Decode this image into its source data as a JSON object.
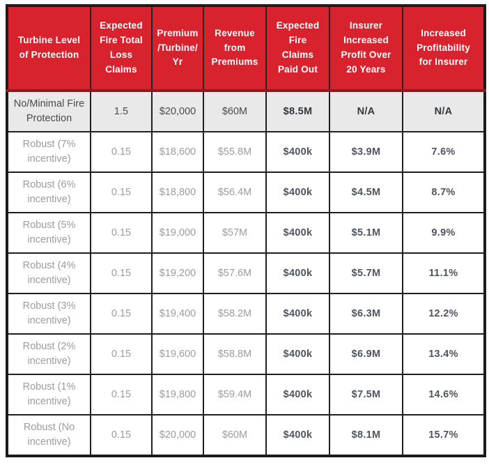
{
  "page": {
    "background": "#ffffff"
  },
  "table": {
    "accent_red": "#d8232e",
    "header_bottom_border_red": "#8a1b21",
    "outer_border_black": "#1b1b1b",
    "highlight_row_bg": "#e9e9e9",
    "light_text_color": "#9c9c9c",
    "strong_text_color": "#4e5560",
    "columns": [
      {
        "id": "turbine-level",
        "label": "Turbine Level\nof Protection"
      },
      {
        "id": "expected-fire-total-loss-claims",
        "label": "Expected\nFire Total\nLoss\nClaims"
      },
      {
        "id": "premium-per-turbine-yr",
        "label": "Premium\n/Turbine/\nYr"
      },
      {
        "id": "revenue-from-premiums",
        "label": "Revenue\nfrom\nPremiums"
      },
      {
        "id": "expected-fire-claims-paid-out",
        "label": "Expected\nFire\nClaims\nPaid Out"
      },
      {
        "id": "insurer-increased-profit-20-years",
        "label": "Insurer\nIncreased\nProfit Over\n20 Years"
      },
      {
        "id": "increased-profitability-for-insurer",
        "label": "Increased\nProfitability\nfor Insurer"
      }
    ],
    "rows": [
      {
        "label": "No/Minimal Fire\nProtection",
        "highlight": true,
        "values": [
          "1.5",
          "$20,000",
          "$60M",
          "$8.5M",
          "N/A",
          "N/A"
        ]
      },
      {
        "label": "Robust (7%\nincentive)",
        "highlight": false,
        "values": [
          "0.15",
          "$18,600",
          "$55.8M",
          "$400k",
          "$3.9M",
          "7.6%"
        ]
      },
      {
        "label": "Robust (6%\nincentive)",
        "highlight": false,
        "values": [
          "0.15",
          "$18,800",
          "$56.4M",
          "$400k",
          "$4.5M",
          "8.7%"
        ]
      },
      {
        "label": "Robust (5%\nincentive)",
        "highlight": false,
        "values": [
          "0.15",
          "$19,000",
          "$57M",
          "$400k",
          "$5.1M",
          "9.9%"
        ]
      },
      {
        "label": "Robust (4%\nincentive)",
        "highlight": false,
        "values": [
          "0.15",
          "$19,200",
          "$57.6M",
          "$400k",
          "$5.7M",
          "11.1%"
        ]
      },
      {
        "label": "Robust (3%\nincentive)",
        "highlight": false,
        "values": [
          "0.15",
          "$19,400",
          "$58.2M",
          "$400k",
          "$6.3M",
          "12.2%"
        ]
      },
      {
        "label": "Robust (2%\nincentive)",
        "highlight": false,
        "values": [
          "0.15",
          "$19,600",
          "$58.8M",
          "$400k",
          "$6.9M",
          "13.4%"
        ]
      },
      {
        "label": "Robust (1%\nincentive)",
        "highlight": false,
        "values": [
          "0.15",
          "$19,800",
          "$59.4M",
          "$400k",
          "$7.5M",
          "14.6%"
        ]
      },
      {
        "label": "Robust (No\nincentive)",
        "highlight": false,
        "values": [
          "0.15",
          "$20,000",
          "$60M",
          "$400k",
          "$8.1M",
          "15.7%"
        ]
      }
    ]
  },
  "chart_data": {
    "type": "table",
    "title": "",
    "columns": [
      "Turbine Level of Protection",
      "Expected Fire Total Loss Claims",
      "Premium /Turbine/ Yr",
      "Revenue from Premiums",
      "Expected Fire Claims Paid Out",
      "Insurer Increased Profit Over 20 Years",
      "Increased Profitability for Insurer"
    ],
    "rows": [
      [
        "No/Minimal Fire Protection",
        "1.5",
        "$20,000",
        "$60M",
        "$8.5M",
        "N/A",
        "N/A"
      ],
      [
        "Robust (7% incentive)",
        "0.15",
        "$18,600",
        "$55.8M",
        "$400k",
        "$3.9M",
        "7.6%"
      ],
      [
        "Robust (6% incentive)",
        "0.15",
        "$18,800",
        "$56.4M",
        "$400k",
        "$4.5M",
        "8.7%"
      ],
      [
        "Robust (5% incentive)",
        "0.15",
        "$19,000",
        "$57M",
        "$400k",
        "$5.1M",
        "9.9%"
      ],
      [
        "Robust (4% incentive)",
        "0.15",
        "$19,200",
        "$57.6M",
        "$400k",
        "$5.7M",
        "11.1%"
      ],
      [
        "Robust (3% incentive)",
        "0.15",
        "$19,400",
        "$58.2M",
        "$400k",
        "$6.3M",
        "12.2%"
      ],
      [
        "Robust (2% incentive)",
        "0.15",
        "$19,600",
        "$58.8M",
        "$400k",
        "$6.9M",
        "13.4%"
      ],
      [
        "Robust (1% incentive)",
        "0.15",
        "$19,800",
        "$59.4M",
        "$400k",
        "$7.5M",
        "14.6%"
      ],
      [
        "Robust (No incentive)",
        "0.15",
        "$20,000",
        "$60M",
        "$400k",
        "$8.1M",
        "15.7%"
      ]
    ]
  }
}
